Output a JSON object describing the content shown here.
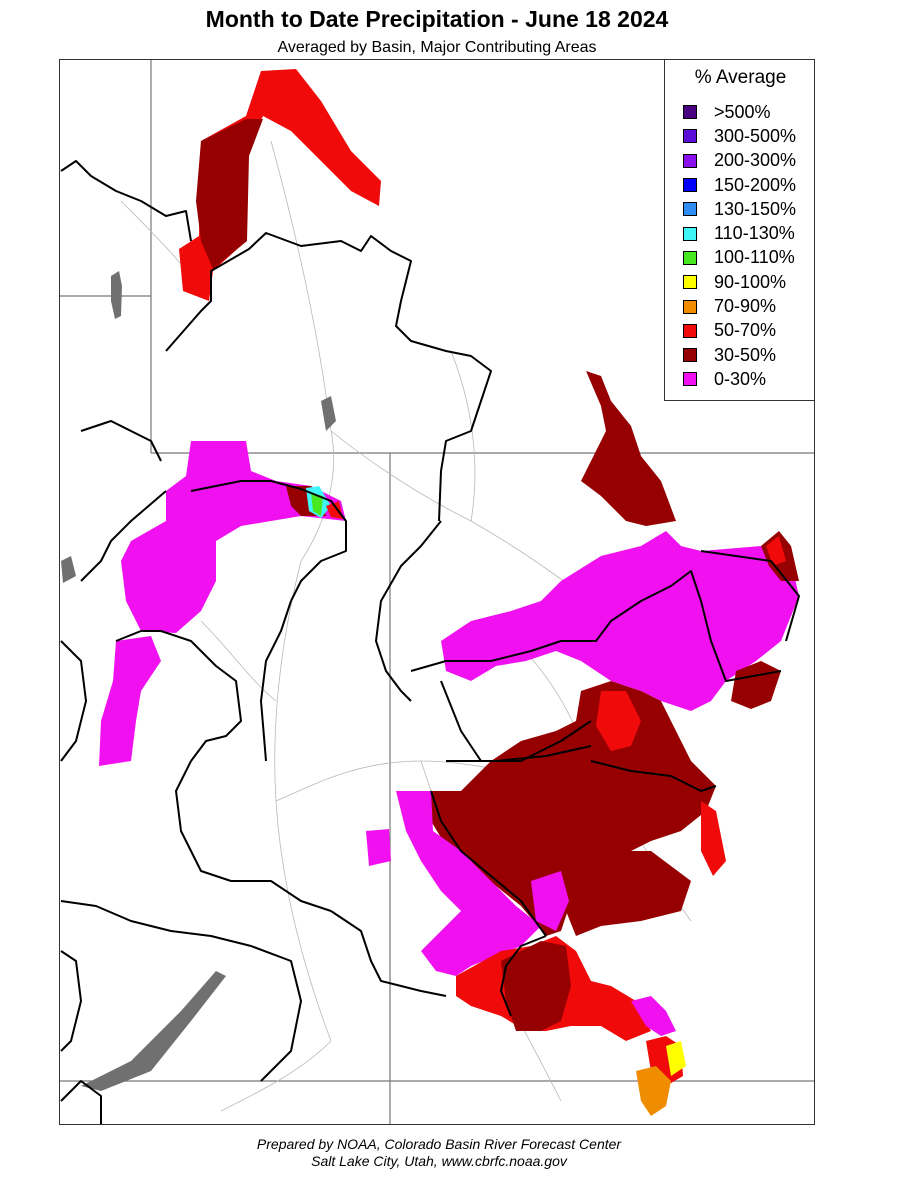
{
  "title": "Month to Date Precipitation - June 18 2024",
  "subtitle": "Averaged by Basin, Major Contributing Areas",
  "legend": {
    "title": "% Average",
    "items": [
      {
        "label": ">500%",
        "color": "#4b0082"
      },
      {
        "label": "300-500%",
        "color": "#5a10d8"
      },
      {
        "label": "200-300%",
        "color": "#8a10ee"
      },
      {
        "label": "150-200%",
        "color": "#0000ff"
      },
      {
        "label": "130-150%",
        "color": "#2f8cf0"
      },
      {
        "label": "110-130%",
        "color": "#40f5f5"
      },
      {
        "label": "100-110%",
        "color": "#48e820"
      },
      {
        "label": "90-100%",
        "color": "#ffff00"
      },
      {
        "label": "70-90%",
        "color": "#f08c00"
      },
      {
        "label": "50-70%",
        "color": "#f00a0a"
      },
      {
        "label": "30-50%",
        "color": "#960000"
      },
      {
        "label": "0-30%",
        "color": "#f010f0"
      }
    ]
  },
  "footer": {
    "line1": "Prepared by NOAA, Colorado Basin River Forecast Center",
    "line2": "Salt Lake City, Utah, www.cbrfc.noaa.gov"
  }
}
